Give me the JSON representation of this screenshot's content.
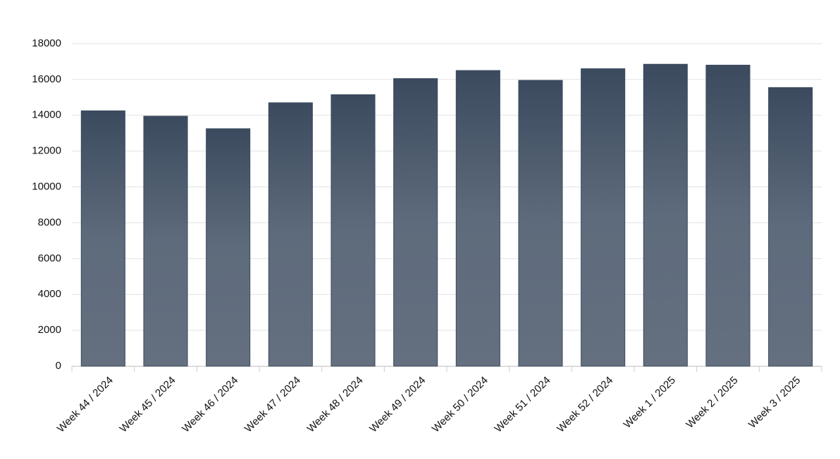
{
  "chart_data": {
    "type": "bar",
    "categories": [
      "Week 44 / 2024",
      "Week 45 / 2024",
      "Week 46 / 2024",
      "Week 47 / 2024",
      "Week 48 / 2024",
      "Week 49 / 2024",
      "Week 50 / 2024",
      "Week 51 / 2024",
      "Week 52 / 2024",
      "Week 1 / 2025",
      "Week 2 / 2025",
      "Week 3 / 2025"
    ],
    "values": [
      14250,
      13950,
      13250,
      14700,
      15150,
      16050,
      16500,
      15950,
      16600,
      16850,
      16800,
      15550
    ],
    "color": "#3b4a5e",
    "ylim": [
      0,
      18000
    ],
    "yticks": [
      0,
      2000,
      4000,
      6000,
      8000,
      10000,
      12000,
      14000,
      16000,
      18000
    ],
    "grid": true
  }
}
